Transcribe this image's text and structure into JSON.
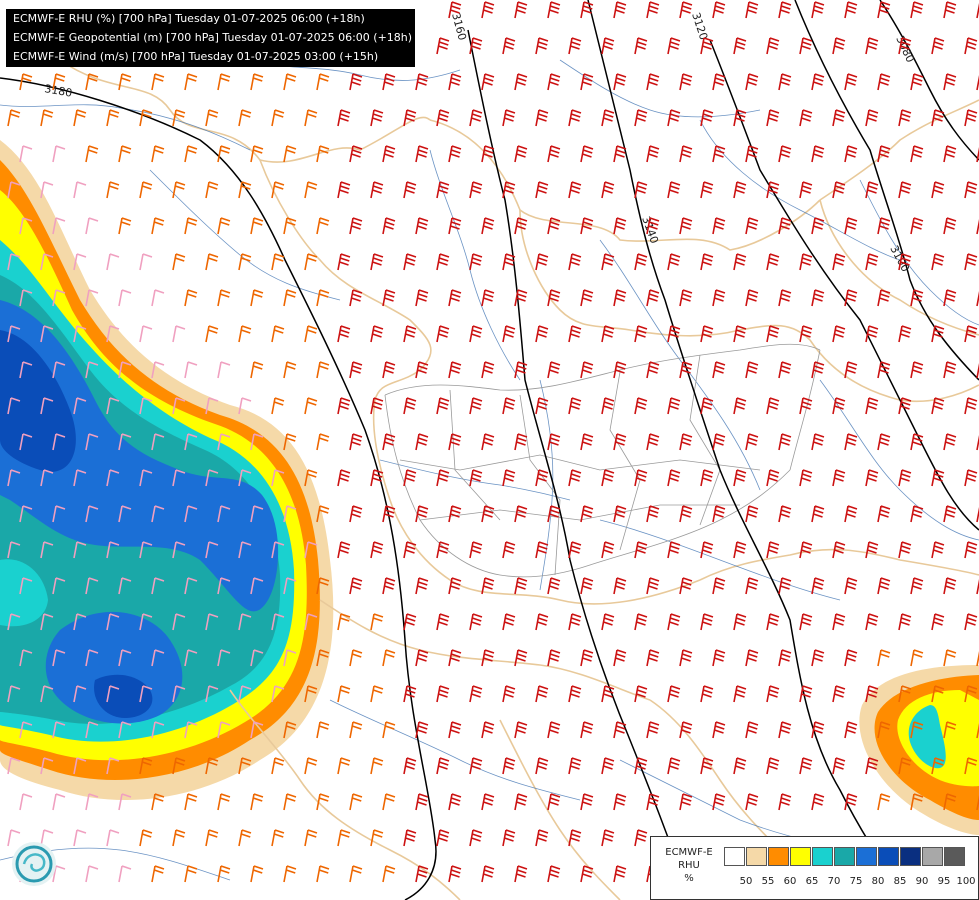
{
  "titles": [
    "ECMWF-E RHU (%) [700 hPa] Tuesday 01-07-2025 06:00 (+18h)",
    "ECMWF-E Geopotential (m) [700 hPa] Tuesday 01-07-2025 06:00 (+18h)",
    "ECMWF-E Wind (m/s) [700 hPa] Tuesday 01-07-2025 03:00 (+15h)"
  ],
  "legend": {
    "title_line1": "ECMWF-E",
    "title_line2": "RHU",
    "title_line3": "%",
    "colors": [
      "#ffffff",
      "#f5d9a8",
      "#ff8c00",
      "#ffff00",
      "#1ad1cf",
      "#1aa8a8",
      "#1b6fd6",
      "#0a4db8",
      "#0a2f80",
      "#a8a8a8",
      "#5a5a5a"
    ],
    "ticks": [
      "50",
      "55",
      "60",
      "65",
      "70",
      "75",
      "80",
      "85",
      "90",
      "95",
      "100"
    ]
  },
  "contour_labels": [
    "3180",
    "3160",
    "3120",
    "3080",
    "3140",
    "3100"
  ],
  "colors": {
    "contour": "#000000",
    "border": "#e8c99a",
    "river": "#3a6fb0",
    "admin": "#9a9a9a",
    "barb_red": "#cc1111",
    "barb_orange": "#ee6600",
    "barb_pink": "#f0a0c0"
  },
  "icons": [
    "ecmwf-logo-icon"
  ]
}
